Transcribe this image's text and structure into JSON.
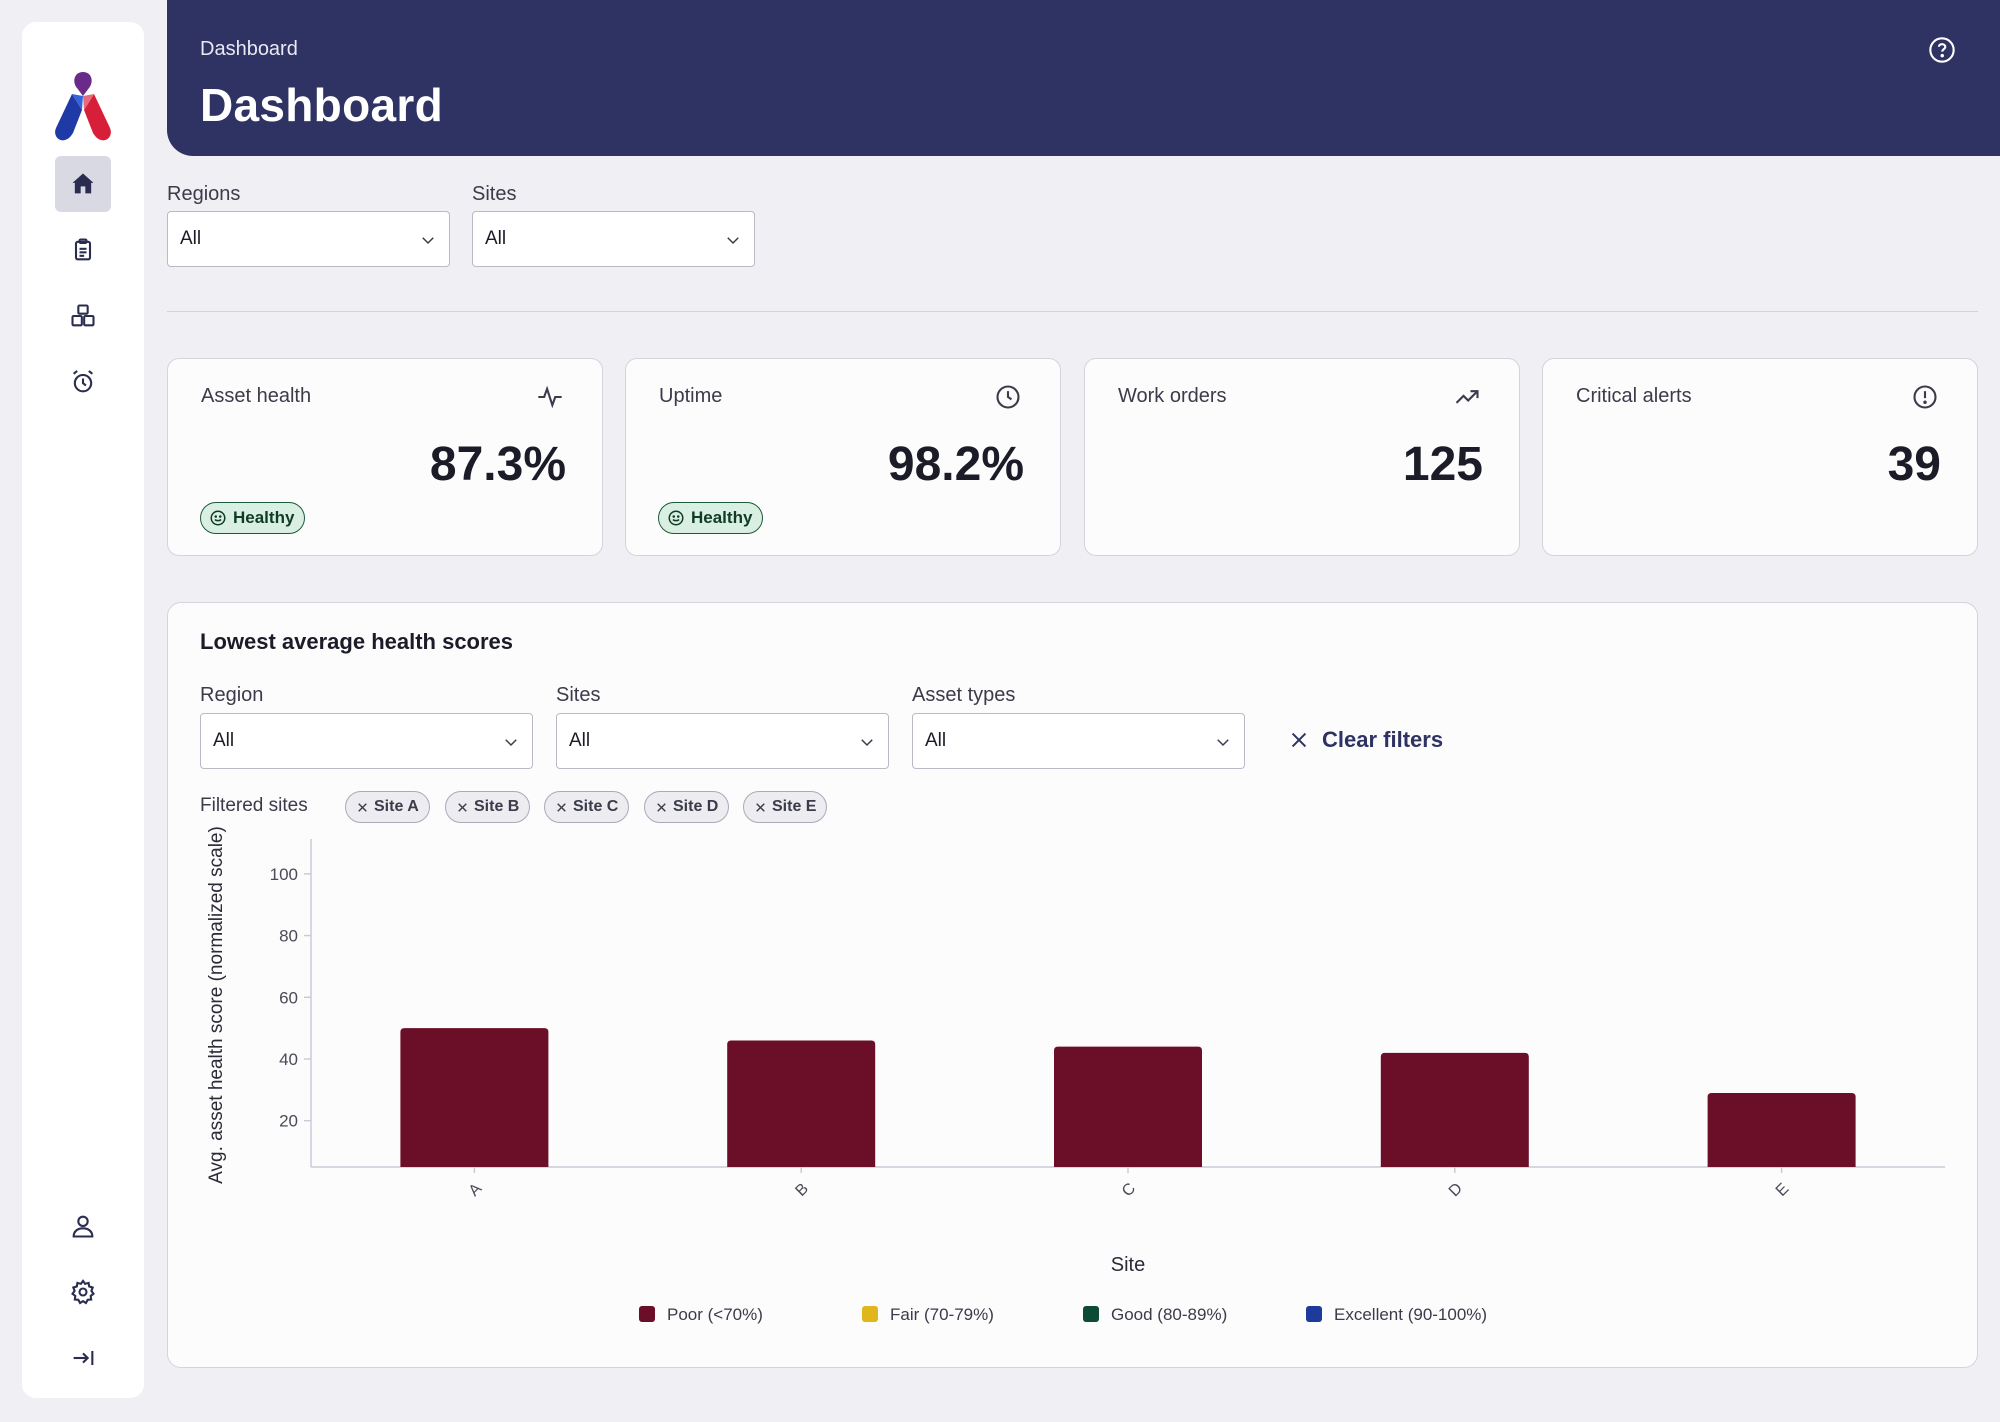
{
  "header": {
    "breadcrumb": "Dashboard",
    "title": "Dashboard"
  },
  "filters": {
    "regions": {
      "label": "Regions",
      "value": "All"
    },
    "sites": {
      "label": "Sites",
      "value": "All"
    }
  },
  "kpis": [
    {
      "title": "Asset health",
      "value": "87.3%",
      "badge": "Healthy",
      "icon": "activity-icon"
    },
    {
      "title": "Uptime",
      "value": "98.2%",
      "badge": "Healthy",
      "icon": "clock-icon"
    },
    {
      "title": "Work orders",
      "value": "125",
      "icon": "trending-up-icon"
    },
    {
      "title": "Critical alerts",
      "value": "39",
      "icon": "alert-circle-icon"
    }
  ],
  "panel": {
    "title": "Lowest average health scores",
    "region": {
      "label": "Region",
      "value": "All"
    },
    "sites": {
      "label": "Sites",
      "value": "All"
    },
    "asset_types": {
      "label": "Asset types",
      "value": "All"
    },
    "clear_filters": "Clear filters",
    "filtered_label": "Filtered sites",
    "chips": [
      "Site A",
      "Site B",
      "Site C",
      "Site D",
      "Site E"
    ]
  },
  "sidebar": {
    "items": [
      "home-icon",
      "clipboard-icon",
      "boxes-icon",
      "alarm-clock-icon"
    ],
    "bottom": [
      "user-icon",
      "settings-icon",
      "collapse-icon"
    ]
  },
  "chart_data": {
    "type": "bar",
    "categories": [
      "A",
      "B",
      "C",
      "D",
      "E"
    ],
    "values": [
      50,
      46,
      44,
      42,
      29
    ],
    "xlabel": "Site",
    "ylabel": "Avg. asset health score (normalized scale)",
    "ylim": [
      5,
      110
    ],
    "yticks": [
      20,
      40,
      60,
      80,
      100
    ],
    "grid": false,
    "bar_color": "#6b0f28",
    "legend": [
      {
        "label": "Poor (<70%)",
        "color": "#6b0f28"
      },
      {
        "label": "Fair (70-79%)",
        "color": "#e0b61d"
      },
      {
        "label": "Good (80-89%)",
        "color": "#0b4a35"
      },
      {
        "label": "Excellent (90-100%)",
        "color": "#1e3a9a"
      }
    ],
    "legend_position": "bottom"
  },
  "colors": {
    "header_bg": "#2f3363",
    "accent": "#2f3363",
    "healthy_badge": "#d8efe2"
  }
}
